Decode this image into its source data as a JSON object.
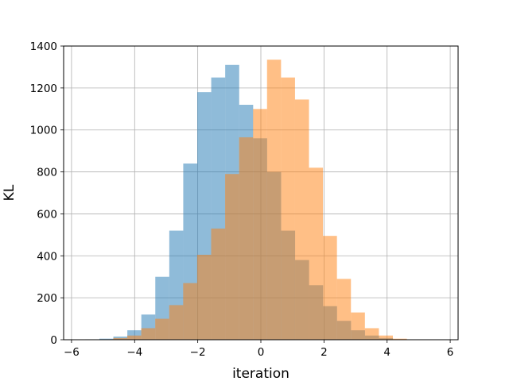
{
  "chart_data": {
    "type": "histogram",
    "title": "",
    "xlabel": "iteration",
    "ylabel": "KL",
    "xlim": [
      -6.25,
      6.25
    ],
    "ylim": [
      0,
      1400
    ],
    "xticks": [
      -6,
      -4,
      -2,
      0,
      2,
      4,
      6
    ],
    "xtick_labels": [
      "−6",
      "−4",
      "−2",
      "0",
      "2",
      "4",
      "6"
    ],
    "yticks": [
      0,
      200,
      400,
      600,
      800,
      1000,
      1200,
      1400
    ],
    "ytick_labels": [
      "0",
      "200",
      "400",
      "600",
      "800",
      "1000",
      "1200",
      "1400"
    ],
    "grid": true,
    "legend": "none",
    "bin_width": 0.443,
    "series": [
      {
        "color": "#1f77b4",
        "alpha": 0.5,
        "bin_start": -5.56,
        "values": [
          2,
          5,
          15,
          45,
          120,
          300,
          520,
          840,
          1180,
          1250,
          1310,
          1120,
          960,
          800,
          520,
          380,
          260,
          160,
          90,
          45,
          20,
          8,
          2
        ]
      },
      {
        "color": "#ff7f0e",
        "alpha": 0.5,
        "bin_start": -5.12,
        "values": [
          2,
          8,
          20,
          55,
          100,
          165,
          270,
          405,
          530,
          790,
          965,
          1100,
          1335,
          1250,
          1145,
          820,
          495,
          290,
          130,
          55,
          20,
          5
        ]
      }
    ]
  }
}
